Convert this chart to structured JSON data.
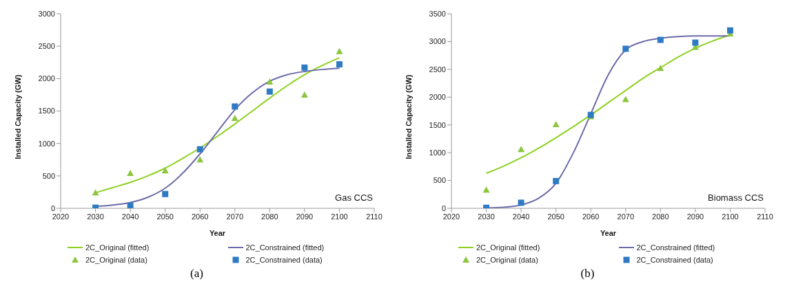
{
  "chart_data": [
    {
      "type": "line",
      "title": "(a)",
      "xlabel": "Year",
      "ylabel": "Installed Capacity (GW)",
      "annotations": [
        "Gas CCS"
      ],
      "xlim": [
        2020,
        2110
      ],
      "xticks": [
        2020,
        2030,
        2040,
        2050,
        2060,
        2070,
        2080,
        2090,
        2100,
        2110
      ],
      "ylim": [
        0,
        3000
      ],
      "yticks": [
        0,
        500,
        1000,
        1500,
        2000,
        2500,
        3000
      ],
      "grid": false,
      "legend": "bottom",
      "series": [
        {
          "name": "2C_Original (fitted)",
          "marker": "none",
          "color": "#8cd121",
          "x": [
            2030,
            2035,
            2040,
            2045,
            2050,
            2055,
            2060,
            2065,
            2070,
            2075,
            2080,
            2085,
            2090,
            2095,
            2100
          ],
          "values": [
            240,
            320,
            400,
            500,
            620,
            770,
            930,
            1110,
            1300,
            1500,
            1700,
            1890,
            2060,
            2200,
            2320
          ]
        },
        {
          "name": "2C_Constrained (fitted)",
          "marker": "none",
          "color": "#6b6aa8",
          "x": [
            2030,
            2035,
            2040,
            2045,
            2050,
            2055,
            2060,
            2065,
            2070,
            2075,
            2080,
            2085,
            2090,
            2095,
            2100
          ],
          "values": [
            30,
            50,
            90,
            170,
            310,
            540,
            840,
            1180,
            1520,
            1780,
            1960,
            2060,
            2110,
            2140,
            2160
          ]
        },
        {
          "name": "2C_Original (data)",
          "type": "scatter",
          "marker": "triangle",
          "color": "#8cc63e",
          "x": [
            2030,
            2040,
            2050,
            2060,
            2070,
            2080,
            2090,
            2100
          ],
          "values": [
            240,
            540,
            580,
            750,
            1390,
            1950,
            1750,
            2420
          ]
        },
        {
          "name": "2C_Constrained (data)",
          "type": "scatter",
          "marker": "square",
          "color": "#2e7bc4",
          "x": [
            2030,
            2040,
            2050,
            2060,
            2070,
            2080,
            2090,
            2100
          ],
          "values": [
            10,
            40,
            220,
            910,
            1570,
            1800,
            2170,
            2220
          ]
        }
      ]
    },
    {
      "type": "line",
      "title": "(b)",
      "xlabel": "Year",
      "ylabel": "Installed Capacity (GW)",
      "annotations": [
        "Biomass CCS"
      ],
      "xlim": [
        2020,
        2110
      ],
      "xticks": [
        2020,
        2030,
        2040,
        2050,
        2060,
        2070,
        2080,
        2090,
        2100,
        2110
      ],
      "ylim": [
        0,
        3500
      ],
      "yticks": [
        0,
        500,
        1000,
        1500,
        2000,
        2500,
        3000,
        3500
      ],
      "grid": false,
      "legend": "bottom",
      "series": [
        {
          "name": "2C_Original (fitted)",
          "marker": "none",
          "color": "#8cd121",
          "x": [
            2030,
            2035,
            2040,
            2045,
            2050,
            2055,
            2060,
            2065,
            2070,
            2075,
            2080,
            2085,
            2090,
            2095,
            2100
          ],
          "values": [
            630,
            760,
            910,
            1080,
            1270,
            1470,
            1680,
            1900,
            2120,
            2340,
            2530,
            2720,
            2880,
            3010,
            3120
          ]
        },
        {
          "name": "2C_Constrained (fitted)",
          "marker": "none",
          "color": "#6b6aa8",
          "x": [
            2030,
            2035,
            2040,
            2045,
            2050,
            2055,
            2060,
            2065,
            2070,
            2075,
            2080,
            2085,
            2090,
            2095,
            2100
          ],
          "values": [
            10,
            20,
            60,
            180,
            450,
            1000,
            1700,
            2400,
            2850,
            3000,
            3060,
            3090,
            3100,
            3100,
            3100
          ]
        },
        {
          "name": "2C_Original (data)",
          "type": "scatter",
          "marker": "triangle",
          "color": "#8cc63e",
          "x": [
            2030,
            2040,
            2050,
            2060,
            2070,
            2080,
            2090,
            2100
          ],
          "values": [
            330,
            1060,
            1510,
            1650,
            1960,
            2520,
            2900,
            3140
          ]
        },
        {
          "name": "2C_Constrained (data)",
          "type": "scatter",
          "marker": "square",
          "color": "#2e7bc4",
          "x": [
            2030,
            2040,
            2050,
            2060,
            2070,
            2080,
            2090,
            2100
          ],
          "values": [
            10,
            100,
            490,
            1680,
            2870,
            3030,
            2980,
            3200
          ]
        }
      ]
    }
  ]
}
